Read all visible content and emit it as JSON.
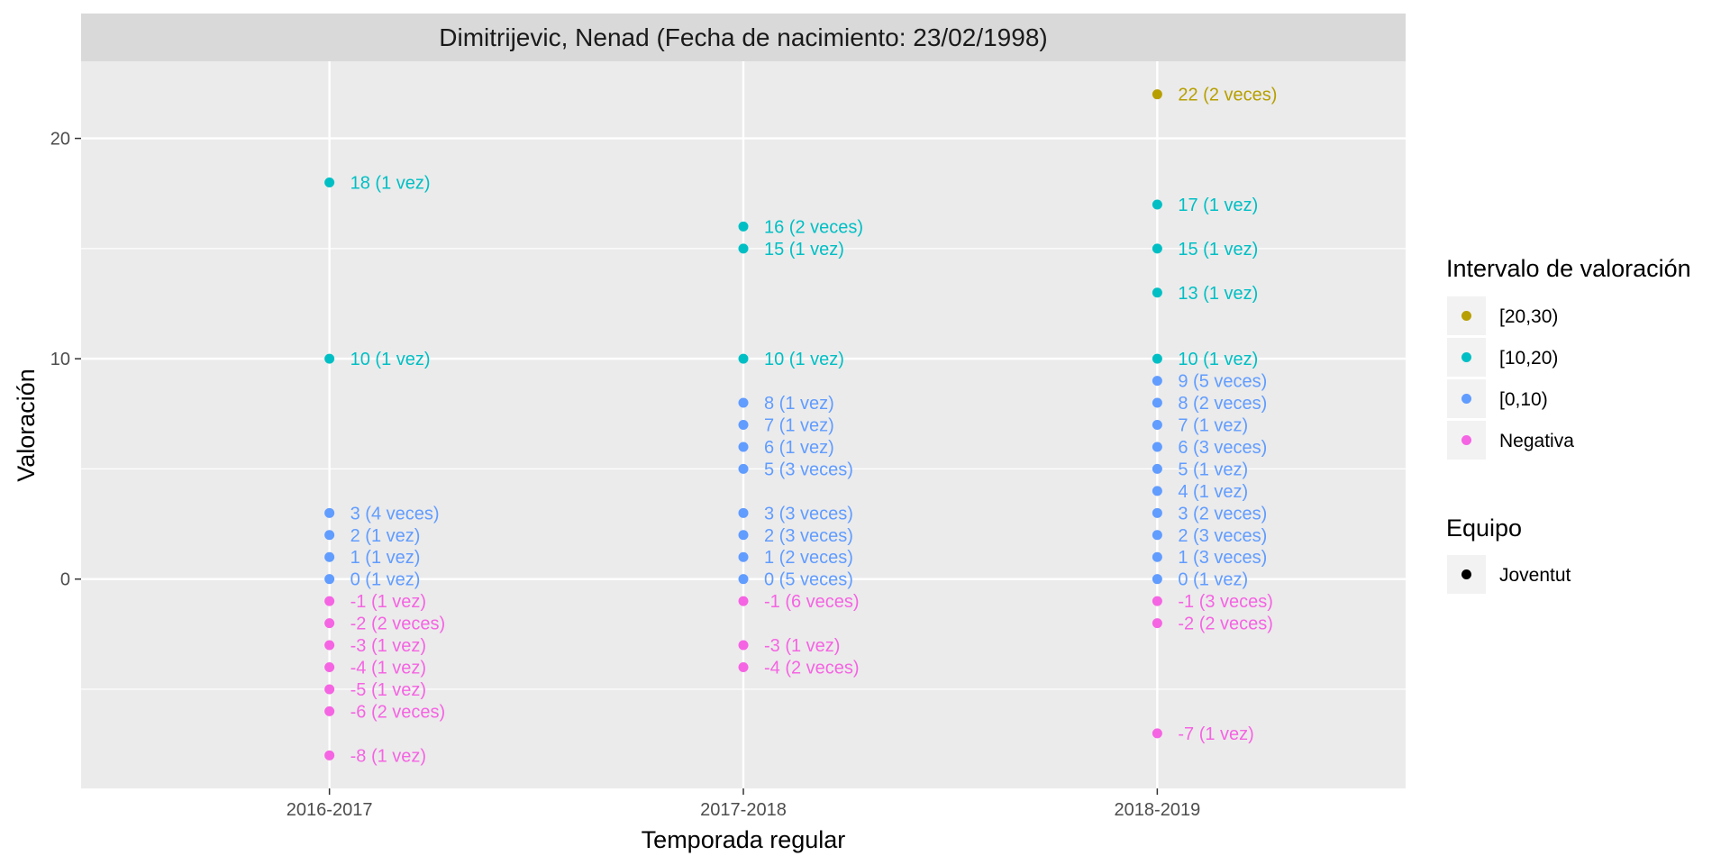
{
  "chart_data": {
    "type": "scatter",
    "title": "Dimitrijevic, Nenad (Fecha de nacimiento: 23/02/1998)",
    "xlabel": "Temporada regular",
    "ylabel": "Valoración",
    "categories": [
      "2016-2017",
      "2017-2018",
      "2018-2019"
    ],
    "ylim": [
      -9.5,
      23.5
    ],
    "yticks": [
      0,
      10,
      20
    ],
    "grid": true,
    "legend_position": "right",
    "legend": {
      "color_title": "Intervalo de valoración",
      "color_entries": [
        {
          "label": "[20,30)",
          "color": "#B79F00"
        },
        {
          "label": "[10,20)",
          "color": "#00BFC4"
        },
        {
          "label": "[0,10)",
          "color": "#619CFF"
        },
        {
          "label": "Negativa",
          "color": "#F564E3"
        }
      ],
      "shape_title": "Equipo",
      "shape_entries": [
        {
          "label": "Joventut",
          "color": "#000000"
        }
      ]
    },
    "points": [
      {
        "x": "2016-2017",
        "y": 18,
        "label": "18 (1 vez)",
        "color": "#00BFC4"
      },
      {
        "x": "2016-2017",
        "y": 10,
        "label": "10 (1 vez)",
        "color": "#00BFC4"
      },
      {
        "x": "2016-2017",
        "y": 3,
        "label": "3 (4 veces)",
        "color": "#619CFF"
      },
      {
        "x": "2016-2017",
        "y": 2,
        "label": "2 (1 vez)",
        "color": "#619CFF"
      },
      {
        "x": "2016-2017",
        "y": 1,
        "label": "1 (1 vez)",
        "color": "#619CFF"
      },
      {
        "x": "2016-2017",
        "y": 0,
        "label": "0 (1 vez)",
        "color": "#619CFF"
      },
      {
        "x": "2016-2017",
        "y": -1,
        "label": "-1 (1 vez)",
        "color": "#F564E3"
      },
      {
        "x": "2016-2017",
        "y": -2,
        "label": "-2 (2 veces)",
        "color": "#F564E3"
      },
      {
        "x": "2016-2017",
        "y": -3,
        "label": "-3 (1 vez)",
        "color": "#F564E3"
      },
      {
        "x": "2016-2017",
        "y": -4,
        "label": "-4 (1 vez)",
        "color": "#F564E3"
      },
      {
        "x": "2016-2017",
        "y": -5,
        "label": "-5 (1 vez)",
        "color": "#F564E3"
      },
      {
        "x": "2016-2017",
        "y": -6,
        "label": "-6 (2 veces)",
        "color": "#F564E3"
      },
      {
        "x": "2016-2017",
        "y": -8,
        "label": "-8 (1 vez)",
        "color": "#F564E3"
      },
      {
        "x": "2017-2018",
        "y": 16,
        "label": "16 (2 veces)",
        "color": "#00BFC4"
      },
      {
        "x": "2017-2018",
        "y": 15,
        "label": "15 (1 vez)",
        "color": "#00BFC4"
      },
      {
        "x": "2017-2018",
        "y": 10,
        "label": "10 (1 vez)",
        "color": "#00BFC4"
      },
      {
        "x": "2017-2018",
        "y": 8,
        "label": "8 (1 vez)",
        "color": "#619CFF"
      },
      {
        "x": "2017-2018",
        "y": 7,
        "label": "7 (1 vez)",
        "color": "#619CFF"
      },
      {
        "x": "2017-2018",
        "y": 6,
        "label": "6 (1 vez)",
        "color": "#619CFF"
      },
      {
        "x": "2017-2018",
        "y": 5,
        "label": "5 (3 veces)",
        "color": "#619CFF"
      },
      {
        "x": "2017-2018",
        "y": 3,
        "label": "3 (3 veces)",
        "color": "#619CFF"
      },
      {
        "x": "2017-2018",
        "y": 2,
        "label": "2 (3 veces)",
        "color": "#619CFF"
      },
      {
        "x": "2017-2018",
        "y": 1,
        "label": "1 (2 veces)",
        "color": "#619CFF"
      },
      {
        "x": "2017-2018",
        "y": 0,
        "label": "0 (5 veces)",
        "color": "#619CFF"
      },
      {
        "x": "2017-2018",
        "y": -1,
        "label": "-1 (6 veces)",
        "color": "#F564E3"
      },
      {
        "x": "2017-2018",
        "y": -3,
        "label": "-3 (1 vez)",
        "color": "#F564E3"
      },
      {
        "x": "2017-2018",
        "y": -4,
        "label": "-4 (2 veces)",
        "color": "#F564E3"
      },
      {
        "x": "2018-2019",
        "y": 22,
        "label": "22 (2 veces)",
        "color": "#B79F00"
      },
      {
        "x": "2018-2019",
        "y": 17,
        "label": "17 (1 vez)",
        "color": "#00BFC4"
      },
      {
        "x": "2018-2019",
        "y": 15,
        "label": "15 (1 vez)",
        "color": "#00BFC4"
      },
      {
        "x": "2018-2019",
        "y": 13,
        "label": "13 (1 vez)",
        "color": "#00BFC4"
      },
      {
        "x": "2018-2019",
        "y": 10,
        "label": "10 (1 vez)",
        "color": "#00BFC4"
      },
      {
        "x": "2018-2019",
        "y": 9,
        "label": "9 (5 veces)",
        "color": "#619CFF"
      },
      {
        "x": "2018-2019",
        "y": 8,
        "label": "8 (2 veces)",
        "color": "#619CFF"
      },
      {
        "x": "2018-2019",
        "y": 7,
        "label": "7 (1 vez)",
        "color": "#619CFF"
      },
      {
        "x": "2018-2019",
        "y": 6,
        "label": "6 (3 veces)",
        "color": "#619CFF"
      },
      {
        "x": "2018-2019",
        "y": 5,
        "label": "5 (1 vez)",
        "color": "#619CFF"
      },
      {
        "x": "2018-2019",
        "y": 4,
        "label": "4 (1 vez)",
        "color": "#619CFF"
      },
      {
        "x": "2018-2019",
        "y": 3,
        "label": "3 (2 veces)",
        "color": "#619CFF"
      },
      {
        "x": "2018-2019",
        "y": 2,
        "label": "2 (3 veces)",
        "color": "#619CFF"
      },
      {
        "x": "2018-2019",
        "y": 1,
        "label": "1 (3 veces)",
        "color": "#619CFF"
      },
      {
        "x": "2018-2019",
        "y": 0,
        "label": "0 (1 vez)",
        "color": "#619CFF"
      },
      {
        "x": "2018-2019",
        "y": -1,
        "label": "-1 (3 veces)",
        "color": "#F564E3"
      },
      {
        "x": "2018-2019",
        "y": -2,
        "label": "-2 (2 veces)",
        "color": "#F564E3"
      },
      {
        "x": "2018-2019",
        "y": -7,
        "label": "-7 (1 vez)",
        "color": "#F564E3"
      }
    ]
  }
}
